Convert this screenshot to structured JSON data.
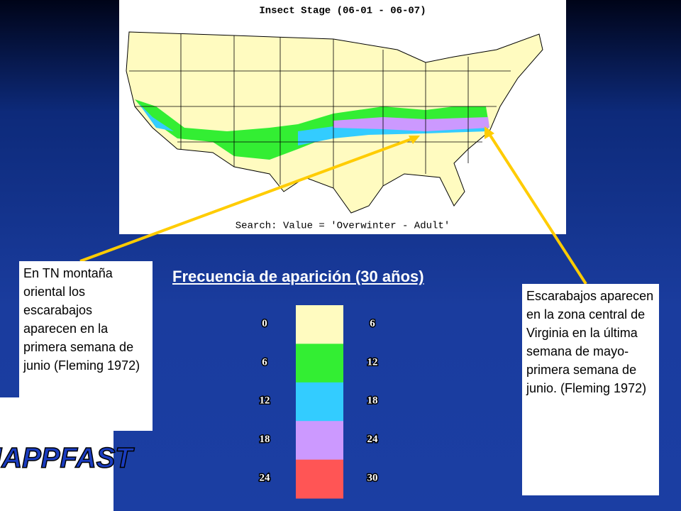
{
  "map": {
    "title": "Insect Stage (06-01 - 06-07)",
    "footer": "Search: Value = 'Overwinter - Adult'"
  },
  "heading": "Frecuencia de aparición (30 años)",
  "legend": [
    {
      "from": 0,
      "to": 6,
      "color": "#fffbc0"
    },
    {
      "from": 6,
      "to": 12,
      "color": "#33ee33"
    },
    {
      "from": 12,
      "to": 18,
      "color": "#33ccff"
    },
    {
      "from": 18,
      "to": 24,
      "color": "#cc99ff"
    },
    {
      "from": 24,
      "to": 30,
      "color": "#ff5555"
    }
  ],
  "notes": {
    "left": "En TN montaña oriental los escarabajos aparecen en la primera semana de junio (Fleming 1972)",
    "right": "Escarabajos aparecen en la zona central de Virginia en la última semana de mayo-primera semana de junio. (Fleming 1972)"
  },
  "logo": "NAPPFAST"
}
